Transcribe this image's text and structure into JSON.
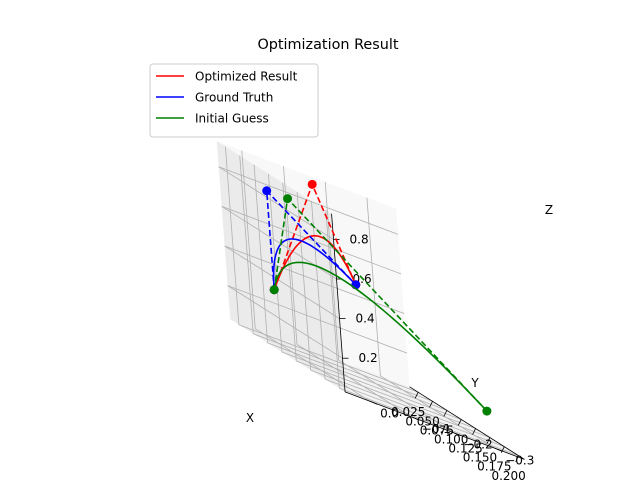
{
  "chart_data": {
    "type": "line",
    "projection": "3d",
    "title": "Optimization Result",
    "xlabel": "X",
    "ylabel": "Y",
    "zlabel": "Z",
    "xlim": [
      0.01,
      0.21
    ],
    "ylim": [
      -0.37,
      0.06
    ],
    "zlim": [
      0.03,
      0.93
    ],
    "x_ticks": [
      0.025,
      0.05,
      0.075,
      0.1,
      0.125,
      0.15,
      0.175,
      0.2
    ],
    "x_tick_labels": [
      "0.025",
      "0.050",
      "0.075",
      "0.100",
      "0.125",
      "0.150",
      "0.175",
      "0.200"
    ],
    "y_ticks": [
      0.0,
      -0.1,
      -0.2,
      -0.3
    ],
    "y_tick_labels": [
      "0.0",
      "−0.1",
      "−0.2",
      "−0.3"
    ],
    "z_ticks": [
      0.2,
      0.4,
      0.6,
      0.8
    ],
    "z_tick_labels": [
      "0.2",
      "0.4",
      "0.6",
      "0.8"
    ],
    "grid": true,
    "legend_position": "upper-left",
    "series": [
      {
        "name": "Optimized Result",
        "color": "#ff0000",
        "start": [
          0.05,
          0.0,
          0.3
        ],
        "control": [
          0.06,
          -0.1,
          0.93
        ],
        "end": [
          0.2,
          0.0,
          0.6
        ]
      },
      {
        "name": "Ground Truth",
        "color": "#0000ff",
        "start": [
          0.05,
          0.0,
          0.3
        ],
        "control": [
          0.05,
          0.0,
          0.8
        ],
        "end": [
          0.2,
          0.0,
          0.6
        ]
      },
      {
        "name": "Initial Guess",
        "color": "#008000",
        "start": [
          0.05,
          0.0,
          0.3
        ],
        "control": [
          0.05,
          -0.05,
          0.8
        ],
        "end": [
          0.2,
          -0.3,
          0.2
        ]
      }
    ]
  }
}
